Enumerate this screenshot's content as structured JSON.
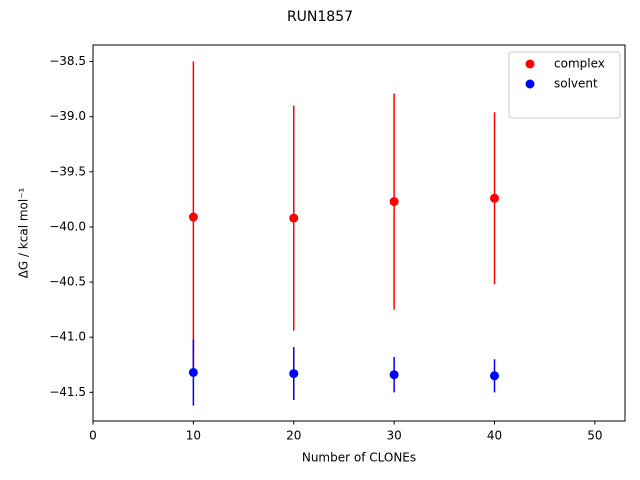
{
  "chart_data": {
    "type": "scatter",
    "title": "RUN1857",
    "x_label": "Number of CLONEs",
    "y_label": "ΔG / kcal mol⁻¹",
    "x": [
      10,
      20,
      30,
      40
    ],
    "series": [
      {
        "name": "complex",
        "color": "#ff0000",
        "values": [
          -39.91,
          -39.92,
          -39.77,
          -39.74
        ],
        "errors": [
          1.41,
          1.02,
          0.98,
          0.78
        ]
      },
      {
        "name": "solvent",
        "color": "#0000ff",
        "values": [
          -41.32,
          -41.33,
          -41.34,
          -41.35
        ],
        "errors": [
          0.3,
          0.24,
          0.16,
          0.15
        ]
      }
    ],
    "xlim": [
      0,
      53
    ],
    "xticks": [
      0,
      10,
      20,
      30,
      40,
      50
    ],
    "ylim": [
      -41.76,
      -38.35
    ],
    "yticks": [
      {
        "value": -41.5,
        "label": "−41.5"
      },
      {
        "value": -41.0,
        "label": "−41.0"
      },
      {
        "value": -40.5,
        "label": "−40.5"
      },
      {
        "value": -40.0,
        "label": "−40.0"
      },
      {
        "value": -39.5,
        "label": "−39.5"
      },
      {
        "value": -39.0,
        "label": "−39.0"
      },
      {
        "value": -38.5,
        "label": "−38.5"
      }
    ],
    "legend": "upper right",
    "grid": false
  }
}
